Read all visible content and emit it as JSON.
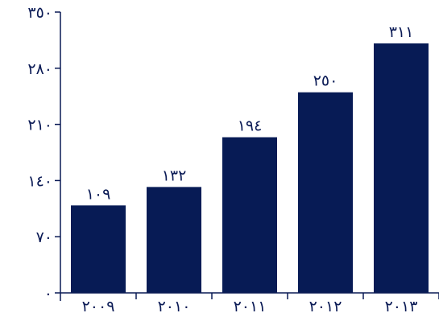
{
  "chart_data": {
    "type": "bar",
    "categories": [
      "٢٠٠٩",
      "٢٠١٠",
      "٢٠١١",
      "٢٠١٢",
      "٢٠١٣"
    ],
    "values": [
      109,
      132,
      194,
      250,
      311
    ],
    "value_labels": [
      "١٠٩",
      "١٣٢",
      "١٩٤",
      "٢٥٠",
      "٣١١"
    ],
    "ylim": [
      0,
      350
    ],
    "yticks": [
      0,
      70,
      140,
      210,
      280,
      350
    ],
    "ytick_labels": [
      "٠",
      "٧٠",
      "١٤٠",
      "٢١٠",
      "٢٨٠",
      "٣٥٠"
    ],
    "bar_color": "#071b55",
    "axis_color": "#0a1a55",
    "grid": false,
    "title": "",
    "xlabel": "",
    "ylabel": ""
  }
}
